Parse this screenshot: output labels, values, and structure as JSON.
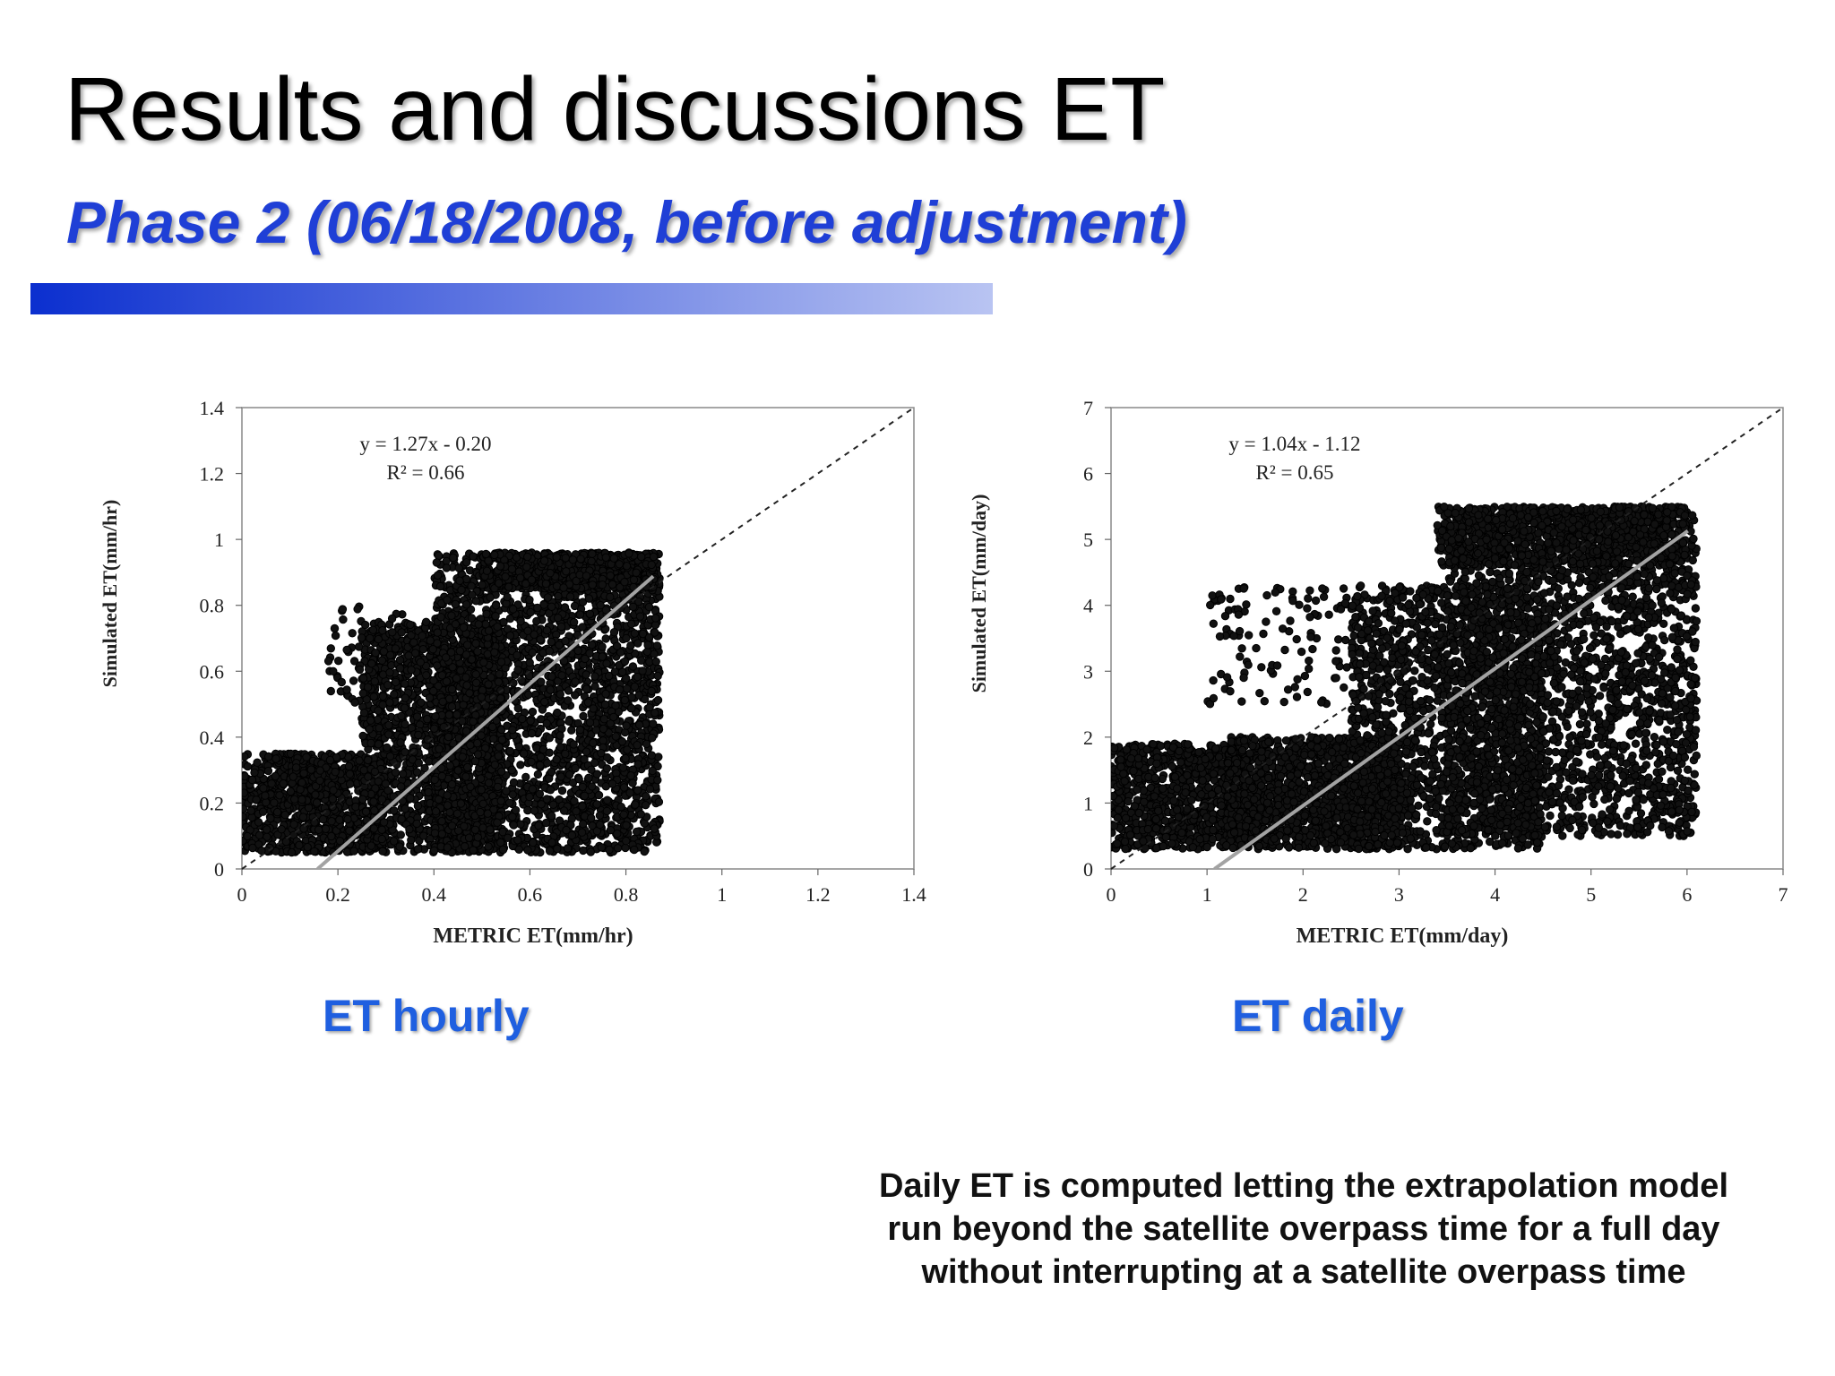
{
  "slide": {
    "title": "Results and discussions ET",
    "subtitle": "Phase 2 (06/18/2008, before adjustment)",
    "note": "Daily ET is computed letting the extrapolation model run beyond the satellite overpass time for a full day without interrupting at a satellite overpass time"
  },
  "colors": {
    "title": "#000000",
    "subtitle": "#1f3fd6",
    "caption": "#1f5fe0",
    "points": "#000000",
    "fit_line": "#a0a0a0"
  },
  "chart_data": [
    {
      "id": "hourly",
      "type": "scatter",
      "caption": "ET hourly",
      "xlabel": "METRIC  ET(mm/hr)",
      "ylabel": "Simulated  ET(mm/hr)",
      "xlim": [
        0,
        1.4
      ],
      "ylim": [
        0,
        1.4
      ],
      "xticks": [
        "0",
        "0.2",
        "0.4",
        "0.6",
        "0.8",
        "1",
        "1.2",
        "1.4"
      ],
      "yticks": [
        "0",
        "0.2",
        "0.4",
        "0.6",
        "0.8",
        "1",
        "1.2",
        "1.4"
      ],
      "equation": "y = 1.27x  - 0.20",
      "r_squared": "R² = 0.66",
      "fit": {
        "slope": 1.27,
        "intercept": -0.2
      },
      "one_to_one_line": true,
      "grid": false,
      "point_clusters": [
        {
          "xmin": 0.0,
          "xmax": 0.3,
          "ymin": 0.05,
          "ymax": 0.35,
          "n": 900
        },
        {
          "xmin": 0.25,
          "xmax": 0.55,
          "ymin": 0.05,
          "ymax": 0.75,
          "n": 1500
        },
        {
          "xmin": 0.4,
          "xmax": 0.87,
          "ymin": 0.05,
          "ymax": 0.96,
          "n": 2600
        },
        {
          "xmin": 0.5,
          "xmax": 0.86,
          "ymin": 0.85,
          "ymax": 0.96,
          "n": 700
        },
        {
          "xmin": 0.18,
          "xmax": 0.4,
          "ymin": 0.5,
          "ymax": 0.8,
          "n": 90
        },
        {
          "xmin": 0.1,
          "xmax": 0.2,
          "ymin": 0.2,
          "ymax": 0.35,
          "n": 120
        }
      ]
    },
    {
      "id": "daily",
      "type": "scatter",
      "caption": "ET daily",
      "xlabel": "METRIC  ET(mm/day)",
      "ylabel": "Simulated  ET(mm/day)",
      "xlim": [
        0,
        7
      ],
      "ylim": [
        0,
        7
      ],
      "xticks": [
        "0",
        "1",
        "2",
        "3",
        "4",
        "5",
        "6",
        "7"
      ],
      "yticks": [
        "0",
        "1",
        "2",
        "3",
        "4",
        "5",
        "6",
        "7"
      ],
      "equation": "y = 1.04x  - 1.12",
      "r_squared": "R² = 0.65",
      "fit": {
        "slope": 1.04,
        "intercept": -1.12
      },
      "one_to_one_line": true,
      "grid": false,
      "point_clusters": [
        {
          "xmin": 0.0,
          "xmax": 1.4,
          "ymin": 0.3,
          "ymax": 1.9,
          "n": 900
        },
        {
          "xmin": 1.2,
          "xmax": 3.0,
          "ymin": 0.3,
          "ymax": 2.0,
          "n": 1400
        },
        {
          "xmin": 2.5,
          "xmax": 4.5,
          "ymin": 0.3,
          "ymax": 4.3,
          "n": 1700
        },
        {
          "xmin": 3.5,
          "xmax": 6.1,
          "ymin": 0.5,
          "ymax": 5.5,
          "n": 2400
        },
        {
          "xmin": 3.4,
          "xmax": 6.0,
          "ymin": 4.6,
          "ymax": 5.5,
          "n": 900
        },
        {
          "xmin": 1.0,
          "xmax": 2.6,
          "ymin": 2.5,
          "ymax": 4.3,
          "n": 120
        }
      ]
    }
  ]
}
